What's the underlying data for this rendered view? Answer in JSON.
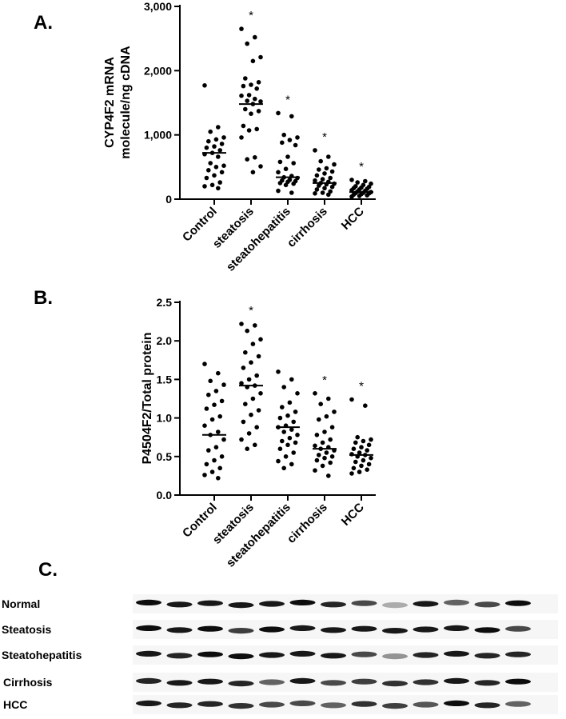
{
  "panels": {
    "a": "A.",
    "b": "B.",
    "c": "C."
  },
  "chart_data": [
    {
      "type": "scatter",
      "panel": "A.",
      "ylabel_lines": [
        "CYP4F2 mRNA",
        "molecule/ng cDNA"
      ],
      "ylim": [
        0,
        3000
      ],
      "yticks": [
        0,
        1000,
        2000,
        3000
      ],
      "ytick_labels": [
        "0",
        "1,000",
        "2,000",
        "3,000"
      ],
      "categories": [
        "Control",
        "steatosis",
        "steatohepatitis",
        "cirrhosis",
        "HCC"
      ],
      "significance": [
        "",
        "*",
        "*",
        "*",
        "*"
      ],
      "medians": [
        720,
        1480,
        340,
        250,
        110
      ],
      "series": [
        {
          "values": [
            1770,
            1120,
            1050,
            960,
            930,
            900,
            860,
            820,
            800,
            760,
            720,
            700,
            660,
            560,
            520,
            500,
            450,
            420,
            370,
            330,
            260,
            220,
            200,
            170
          ]
        },
        {
          "values": [
            2650,
            2520,
            2420,
            2210,
            2150,
            1880,
            1820,
            1780,
            1760,
            1720,
            1620,
            1610,
            1560,
            1530,
            1520,
            1480,
            1400,
            1370,
            1330,
            1140,
            1090,
            1070,
            960,
            650,
            620,
            510,
            420
          ]
        },
        {
          "values": [
            1340,
            1290,
            1000,
            960,
            920,
            880,
            840,
            660,
            580,
            560,
            470,
            420,
            360,
            340,
            330,
            300,
            290,
            280,
            270,
            250,
            240,
            220,
            130,
            100
          ]
        },
        {
          "values": [
            760,
            660,
            590,
            540,
            480,
            460,
            430,
            400,
            370,
            330,
            310,
            290,
            270,
            250,
            240,
            230,
            210,
            190,
            170,
            150,
            120,
            100,
            90,
            70
          ]
        },
        {
          "values": [
            300,
            280,
            260,
            240,
            220,
            200,
            190,
            180,
            170,
            160,
            150,
            140,
            130,
            120,
            110,
            100,
            95,
            90,
            80,
            70,
            60,
            50,
            40
          ]
        }
      ]
    },
    {
      "type": "scatter",
      "panel": "B.",
      "ylabel_lines": [
        "P4504F2/Total protein"
      ],
      "ylim": [
        0,
        2.5
      ],
      "yticks": [
        0,
        0.5,
        1,
        1.5,
        2,
        2.5
      ],
      "ytick_labels": [
        "0.0",
        "0.5",
        "1.0",
        "1.5",
        "2.0",
        "2.5"
      ],
      "categories": [
        "Control",
        "steatosis",
        "steatohepatitis",
        "cirrhosis",
        "HCC"
      ],
      "significance": [
        "",
        "*",
        "",
        "*",
        "*"
      ],
      "medians": [
        0.78,
        1.42,
        0.88,
        0.6,
        0.52
      ],
      "series": [
        {
          "values": [
            1.7,
            1.58,
            1.48,
            1.43,
            1.35,
            1.3,
            1.22,
            1.17,
            1.12,
            1.02,
            0.98,
            0.9,
            0.82,
            0.78,
            0.72,
            0.62,
            0.58,
            0.5,
            0.45,
            0.4,
            0.35,
            0.3,
            0.26,
            0.22
          ]
        },
        {
          "values": [
            2.22,
            2.2,
            2.13,
            2.02,
            1.96,
            1.85,
            1.8,
            1.72,
            1.65,
            1.55,
            1.5,
            1.45,
            1.42,
            1.4,
            1.32,
            1.25,
            1.18,
            1.1,
            1.04,
            0.95,
            0.88,
            0.8,
            0.72,
            0.65,
            0.6
          ]
        },
        {
          "values": [
            1.6,
            1.5,
            1.4,
            1.32,
            1.2,
            1.14,
            1.08,
            1.03,
            1.0,
            0.95,
            0.9,
            0.88,
            0.85,
            0.82,
            0.78,
            0.74,
            0.7,
            0.68,
            0.65,
            0.6,
            0.55,
            0.5,
            0.44,
            0.4,
            0.35
          ]
        },
        {
          "values": [
            1.32,
            1.25,
            1.18,
            1.08,
            1.02,
            0.98,
            0.88,
            0.82,
            0.78,
            0.72,
            0.68,
            0.64,
            0.62,
            0.6,
            0.58,
            0.55,
            0.52,
            0.5,
            0.48,
            0.45,
            0.42,
            0.38,
            0.32,
            0.25
          ]
        },
        {
          "values": [
            1.24,
            1.16,
            0.75,
            0.72,
            0.7,
            0.68,
            0.65,
            0.62,
            0.6,
            0.58,
            0.55,
            0.53,
            0.52,
            0.5,
            0.48,
            0.45,
            0.43,
            0.4,
            0.38,
            0.35,
            0.33,
            0.3,
            0.28
          ]
        }
      ]
    }
  ],
  "blot": {
    "rows": [
      "Normal",
      "Steatosis",
      "Steatohepatitis",
      "Cirrhosis",
      "HCC"
    ],
    "lane_count": 13
  }
}
